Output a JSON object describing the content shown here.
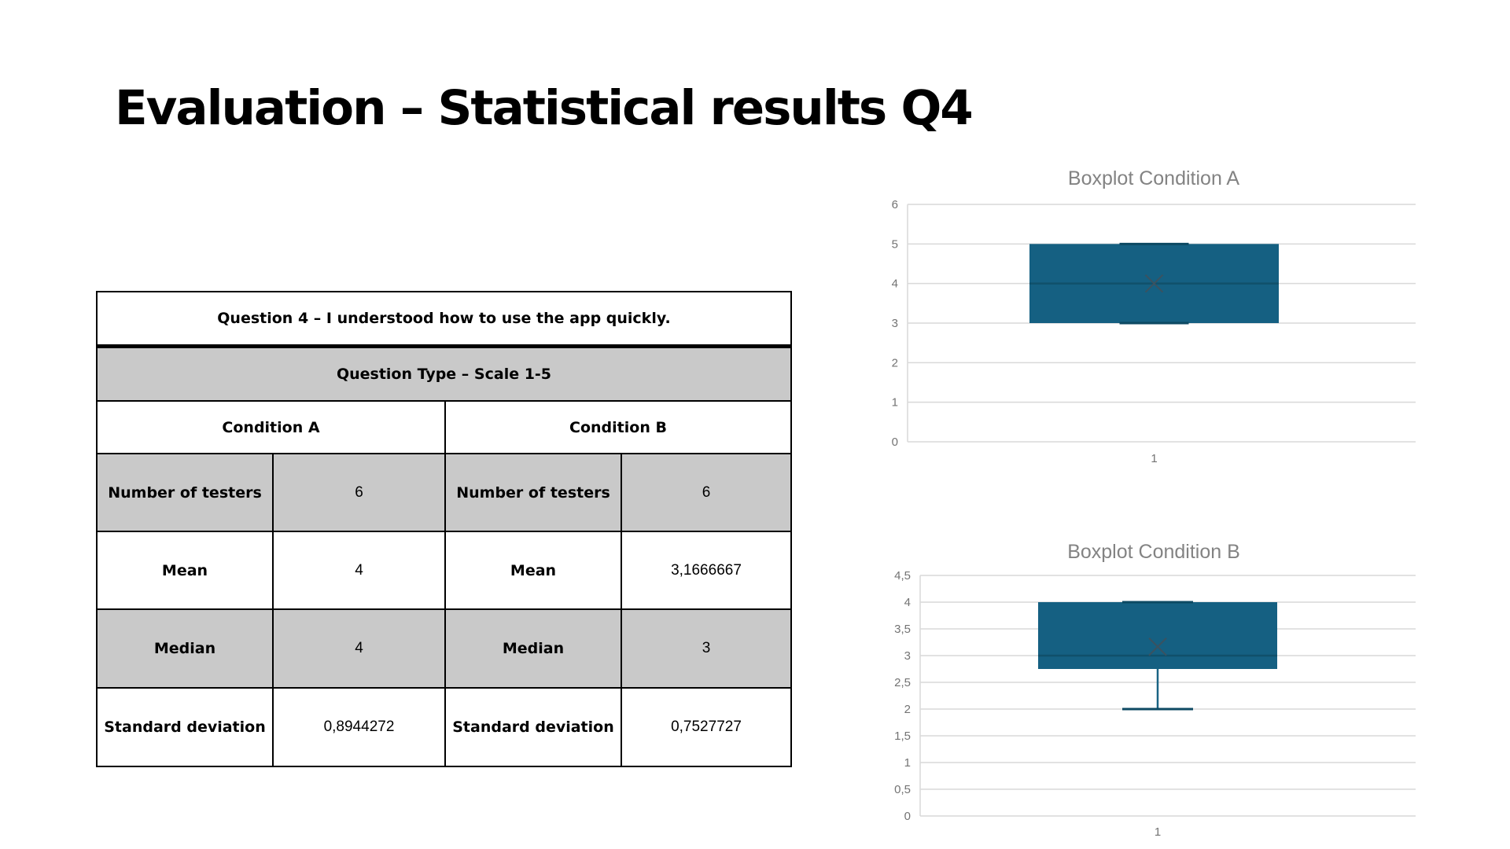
{
  "slide": {
    "title": "Evaluation – Statistical results Q4",
    "background": "#ffffff",
    "title_color": "#000000"
  },
  "table": {
    "question_header": "Question 4 – I understood how to use the app quickly.",
    "type_header": "Question Type – Scale 1-5",
    "conditions": [
      "Condition A",
      "Condition B"
    ],
    "rows": [
      {
        "label_a": "Number of testers",
        "value_a": "6",
        "label_b": "Number of testers",
        "value_b": "6"
      },
      {
        "label_a": "Mean",
        "value_a": "4",
        "label_b": "Mean",
        "value_b": "3,1666667"
      },
      {
        "label_a": "Median",
        "value_a": "4",
        "label_b": "Median",
        "value_b": "3"
      },
      {
        "label_a": "Standard deviation",
        "value_a": "0,8944272",
        "label_b": "Standard deviation",
        "value_b": "0,7527727"
      }
    ],
    "colors": {
      "shaded_row": "#c9c9c9",
      "border": "#000000",
      "text": "#000000"
    }
  },
  "chart_data": [
    {
      "type": "boxplot",
      "title": "Boxplot Condition A",
      "x_categories": [
        "1"
      ],
      "ylim": [
        0,
        6
      ],
      "ytick_step": 1,
      "ytick_labels": [
        "0",
        "1",
        "2",
        "3",
        "4",
        "5",
        "6"
      ],
      "grid": true,
      "legend": "none",
      "series": [
        {
          "name": "Condition A",
          "min": 3,
          "q1": 3,
          "median": 4,
          "q3": 5,
          "max": 5,
          "mean": 4
        }
      ]
    },
    {
      "type": "boxplot",
      "title": "Boxplot Condition B",
      "x_categories": [
        "1"
      ],
      "ylim": [
        0,
        4.5
      ],
      "ytick_step": 0.5,
      "ytick_labels": [
        "0",
        "0,5",
        "1",
        "1,5",
        "2",
        "2,5",
        "3",
        "3,5",
        "4",
        "4,5"
      ],
      "grid": true,
      "legend": "none",
      "series": [
        {
          "name": "Condition B",
          "min": 2,
          "q1": 2.75,
          "median": 3,
          "q3": 4,
          "max": 4,
          "mean": 3.1666667
        }
      ]
    }
  ],
  "chart_style": {
    "grid_color": "#d9d9d9",
    "axis_color": "#d9d9d9",
    "box_fill": "#156082",
    "median_color": "#10506b",
    "whisker_color": "#1a6484",
    "cap_color": "#0d4a63",
    "mean_marker_color": "#3a5260",
    "tick_label_color": "#737373",
    "title_color": "#838383"
  }
}
